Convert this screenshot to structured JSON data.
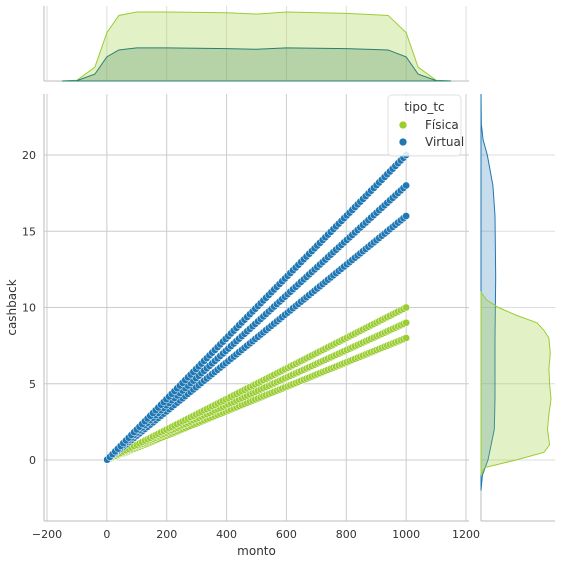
{
  "chart_data": {
    "type": "scatter",
    "xlabel": "monto",
    "ylabel": "cashback",
    "xlim": [
      -210,
      1210
    ],
    "ylim": [
      -4,
      24
    ],
    "xticks": [
      -200,
      0,
      200,
      400,
      600,
      800,
      1000,
      1200
    ],
    "xtick_labels": [
      "−200",
      "0",
      "200",
      "400",
      "600",
      "800",
      "1000",
      "1200"
    ],
    "yticks": [
      0,
      5,
      10,
      15,
      20
    ],
    "ytick_labels": [
      "0",
      "5",
      "10",
      "15",
      "20"
    ],
    "grid": true,
    "legend": {
      "title": "tipo_tc",
      "placement": "top-right",
      "entries": [
        {
          "label": "Física",
          "color": "#9acd32"
        },
        {
          "label": "Virtual",
          "color": "#1f77b4"
        }
      ]
    },
    "series": [
      {
        "name": "Física",
        "color": "#9acd32",
        "x_range": [
          1,
          1000
        ],
        "slopes": [
          0.008,
          0.009,
          0.01
        ],
        "sample_points": [
          [
            1,
            0.01
          ],
          [
            500,
            4
          ],
          [
            500,
            4.5
          ],
          [
            500,
            5
          ],
          [
            1000,
            8
          ],
          [
            1000,
            9
          ],
          [
            1000,
            10
          ]
        ]
      },
      {
        "name": "Virtual",
        "color": "#1f77b4",
        "x_range": [
          1,
          1000
        ],
        "slopes": [
          0.016,
          0.018,
          0.02
        ],
        "sample_points": [
          [
            1,
            0.02
          ],
          [
            500,
            8
          ],
          [
            500,
            9
          ],
          [
            500,
            10
          ],
          [
            1000,
            16
          ],
          [
            1000,
            18
          ],
          [
            1000,
            20
          ]
        ]
      }
    ],
    "marginal_x": {
      "type": "kde",
      "Física_density": [
        [
          -150,
          0.0
        ],
        [
          -100,
          0.01
        ],
        [
          -40,
          0.2
        ],
        [
          0,
          0.7
        ],
        [
          40,
          0.95
        ],
        [
          100,
          1.0
        ],
        [
          200,
          1.0
        ],
        [
          400,
          0.99
        ],
        [
          500,
          0.97
        ],
        [
          600,
          1.0
        ],
        [
          800,
          0.98
        ],
        [
          940,
          0.95
        ],
        [
          1000,
          0.7
        ],
        [
          1040,
          0.2
        ],
        [
          1100,
          0.01
        ],
        [
          1150,
          0.0
        ]
      ],
      "Virtual_density": [
        [
          -150,
          0.0
        ],
        [
          -100,
          0.005
        ],
        [
          -40,
          0.1
        ],
        [
          0,
          0.35
        ],
        [
          40,
          0.45
        ],
        [
          100,
          0.48
        ],
        [
          200,
          0.48
        ],
        [
          400,
          0.47
        ],
        [
          500,
          0.46
        ],
        [
          600,
          0.48
        ],
        [
          800,
          0.47
        ],
        [
          940,
          0.45
        ],
        [
          1000,
          0.35
        ],
        [
          1040,
          0.1
        ],
        [
          1100,
          0.005
        ],
        [
          1150,
          0.0
        ]
      ]
    },
    "marginal_y": {
      "type": "kde",
      "Física_density": [
        [
          -1,
          0.0
        ],
        [
          -0.5,
          0.05
        ],
        [
          0,
          0.5
        ],
        [
          0.5,
          0.9
        ],
        [
          1,
          0.98
        ],
        [
          2,
          0.95
        ],
        [
          3,
          0.97
        ],
        [
          4,
          1.0
        ],
        [
          5,
          0.98
        ],
        [
          6,
          0.97
        ],
        [
          7,
          0.99
        ],
        [
          8,
          0.97
        ],
        [
          8.5,
          0.9
        ],
        [
          9,
          0.8
        ],
        [
          9.5,
          0.5
        ],
        [
          10,
          0.25
        ],
        [
          10.5,
          0.08
        ],
        [
          11,
          0.0
        ]
      ],
      "Virtual_density": [
        [
          -2,
          0.0
        ],
        [
          -1,
          0.02
        ],
        [
          0,
          0.1
        ],
        [
          2,
          0.19
        ],
        [
          4,
          0.2
        ],
        [
          8,
          0.2
        ],
        [
          12,
          0.21
        ],
        [
          16,
          0.2
        ],
        [
          18,
          0.17
        ],
        [
          20,
          0.09
        ],
        [
          21,
          0.03
        ],
        [
          22,
          0.005
        ],
        [
          24,
          0.0
        ]
      ]
    }
  }
}
